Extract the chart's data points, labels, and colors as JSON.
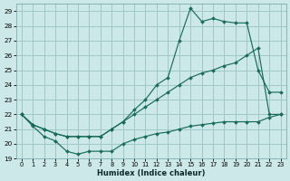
{
  "xlabel": "Humidex (Indice chaleur)",
  "bg_color": "#cce8e8",
  "grid_color": "#9fc8c8",
  "line_color": "#1a6b5a",
  "xlim": [
    -0.5,
    23.5
  ],
  "ylim": [
    19,
    29.5
  ],
  "xticks": [
    0,
    1,
    2,
    3,
    4,
    5,
    6,
    7,
    8,
    9,
    10,
    11,
    12,
    13,
    14,
    15,
    16,
    17,
    18,
    19,
    20,
    21,
    22,
    23
  ],
  "yticks": [
    19,
    20,
    21,
    22,
    23,
    24,
    25,
    26,
    27,
    28,
    29
  ],
  "line_diagonal": {
    "x": [
      0,
      1,
      2,
      3,
      4,
      5,
      6,
      7,
      8,
      9,
      10,
      11,
      12,
      13,
      14,
      15,
      16,
      17,
      18,
      19,
      20,
      21,
      22,
      23
    ],
    "y": [
      22.0,
      21.3,
      21.0,
      20.7,
      20.5,
      20.5,
      20.5,
      20.5,
      21.0,
      21.5,
      22.0,
      22.5,
      23.0,
      23.5,
      24.0,
      24.5,
      24.8,
      25.0,
      25.3,
      25.5,
      26.0,
      26.5,
      22.0,
      22.0
    ]
  },
  "line_spike": {
    "x": [
      0,
      1,
      2,
      3,
      4,
      5,
      6,
      7,
      8,
      9,
      10,
      11,
      12,
      13,
      14,
      15,
      16,
      17,
      18,
      19,
      20,
      21,
      22,
      23
    ],
    "y": [
      22.0,
      21.3,
      21.0,
      20.7,
      20.5,
      20.5,
      20.5,
      20.5,
      21.0,
      21.5,
      22.3,
      23.0,
      24.0,
      24.5,
      27.0,
      29.2,
      28.3,
      28.5,
      28.3,
      28.2,
      28.2,
      25.0,
      23.5,
      23.5
    ]
  },
  "line_bottom": {
    "x": [
      0,
      1,
      2,
      3,
      4,
      5,
      6,
      7,
      8,
      9,
      10,
      11,
      12,
      13,
      14,
      15,
      16,
      17,
      18,
      19,
      20,
      21,
      22,
      23
    ],
    "y": [
      22.0,
      21.2,
      20.5,
      20.2,
      19.5,
      19.3,
      19.5,
      19.5,
      19.5,
      20.0,
      20.3,
      20.5,
      20.7,
      20.8,
      21.0,
      21.2,
      21.3,
      21.4,
      21.5,
      21.5,
      21.5,
      21.5,
      21.8,
      22.0
    ]
  }
}
